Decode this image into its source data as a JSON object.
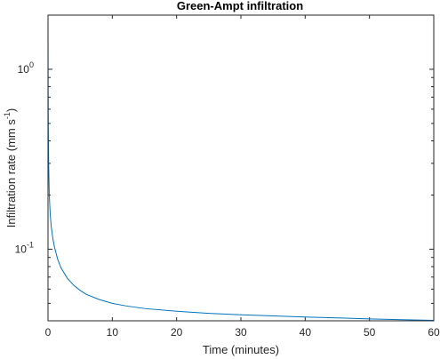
{
  "chart_data": {
    "type": "line",
    "title": "Green-Ampt infiltration",
    "xlabel": "Time (minutes)",
    "ylabel": {
      "base": "Infiltration rate (mm s",
      "superscript": "-1",
      "close": ")"
    },
    "x_scale": "linear",
    "y_scale": "log",
    "xlim": [
      0,
      60
    ],
    "ylim": [
      0.04,
      2.0
    ],
    "x_ticks": [
      0,
      10,
      20,
      30,
      40,
      50,
      60
    ],
    "x_tick_labels": [
      "0",
      "10",
      "20",
      "30",
      "40",
      "50",
      "60"
    ],
    "y_ticks": [
      {
        "value": 1,
        "label_base": "10",
        "label_exp": "0"
      },
      {
        "value": 0.1,
        "label_base": "10",
        "label_exp": "-1"
      }
    ],
    "grid": false,
    "box": true,
    "series": [
      {
        "color": "#0072bd",
        "x": [
          0,
          0.02,
          0.05,
          0.1,
          0.2,
          0.35,
          0.5,
          0.75,
          1,
          1.5,
          2,
          3,
          4,
          5,
          6,
          8,
          10,
          12,
          15,
          20,
          25,
          30,
          35,
          40,
          45,
          50,
          55,
          60
        ],
        "y": [
          2.0,
          0.8,
          0.45,
          0.3,
          0.2,
          0.155,
          0.134,
          0.115,
          0.103,
          0.088,
          0.079,
          0.069,
          0.063,
          0.059,
          0.056,
          0.0525,
          0.05,
          0.0485,
          0.0468,
          0.0452,
          0.044,
          0.0432,
          0.0426,
          0.042,
          0.0415,
          0.041,
          0.0406,
          0.0402
        ]
      }
    ]
  }
}
